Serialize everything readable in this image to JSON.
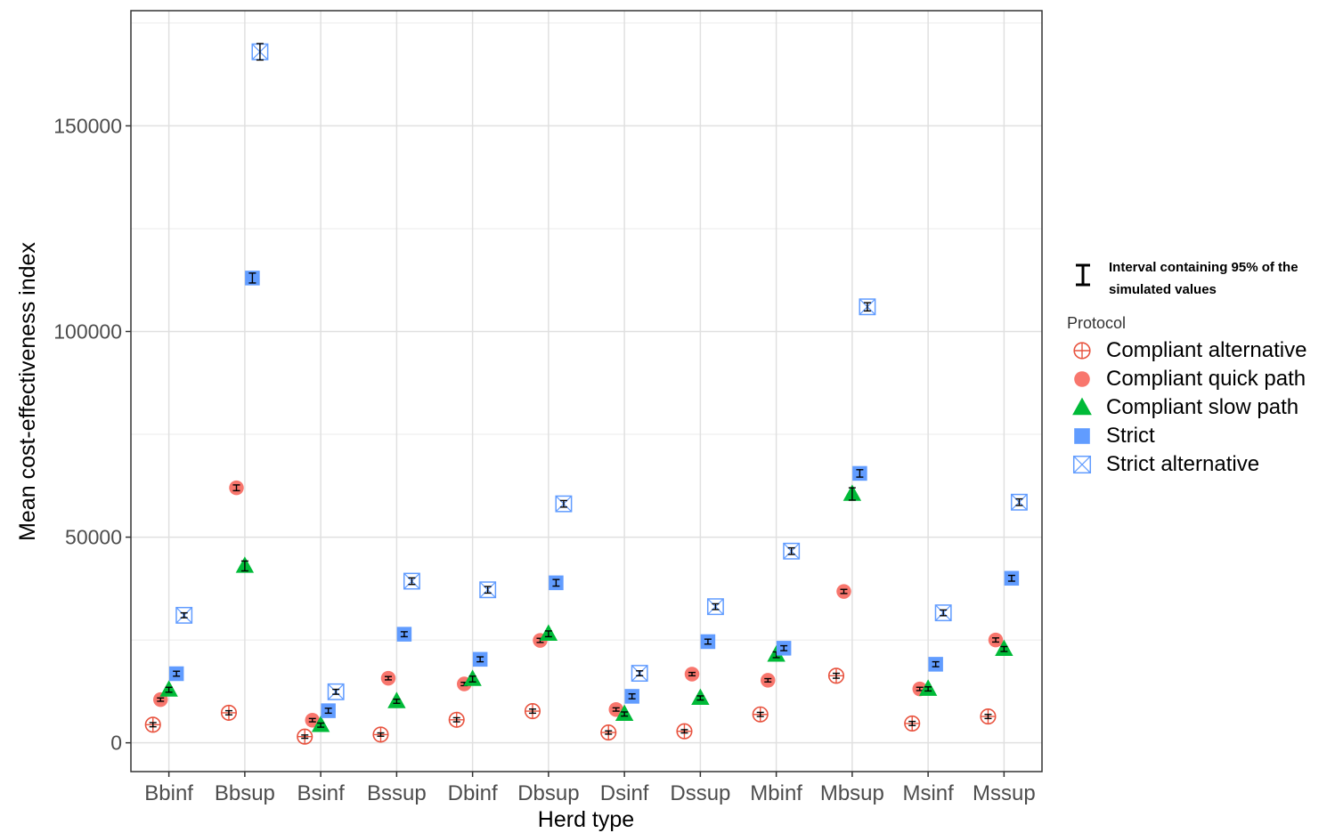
{
  "chart_data": {
    "type": "scatter",
    "xlabel": "Herd type",
    "ylabel": "Mean cost-effectiveness index",
    "categories": [
      "Bbinf",
      "Bbsup",
      "Bsinf",
      "Bssup",
      "Dbinf",
      "Dbsup",
      "Dsinf",
      "Dssup",
      "Mbinf",
      "Mbsup",
      "Msinf",
      "Mssup"
    ],
    "yticks": [
      0,
      50000,
      100000,
      150000
    ],
    "ytick_labels": [
      "0",
      "50000",
      "100000",
      "150000"
    ],
    "ylim": [
      -7000,
      178000
    ],
    "grid": true,
    "legend_position": "right",
    "legend_title": "Protocol",
    "ci_note": "Interval containing 95% of the simulated values",
    "series": [
      {
        "name": "Compliant alternative",
        "color": "#e8533f",
        "marker": "circle-cross",
        "values": [
          4400,
          7300,
          1500,
          2000,
          5600,
          7700,
          2500,
          2800,
          6900,
          16300,
          4700,
          6400
        ],
        "ci_low": [
          3900,
          6800,
          1100,
          1600,
          5100,
          7200,
          2100,
          2400,
          6400,
          15700,
          4200,
          5900
        ],
        "ci_high": [
          4900,
          7800,
          1900,
          2400,
          6100,
          8200,
          2900,
          3200,
          7400,
          16900,
          5200,
          6900
        ]
      },
      {
        "name": "Compliant quick path",
        "color": "#f8766d",
        "marker": "circle",
        "values": [
          10500,
          62000,
          5500,
          15700,
          14300,
          24900,
          8100,
          16700,
          15200,
          36800,
          13100,
          25000
        ],
        "ci_low": [
          10100,
          61300,
          5100,
          15300,
          13900,
          24400,
          7700,
          16300,
          14800,
          36300,
          12700,
          24500
        ],
        "ci_high": [
          10900,
          62700,
          5900,
          16100,
          14700,
          25400,
          8500,
          17100,
          15600,
          37300,
          13500,
          25500
        ]
      },
      {
        "name": "Compliant slow path",
        "color": "#00ba38",
        "marker": "triangle",
        "values": [
          12900,
          43000,
          4300,
          10100,
          15500,
          26500,
          7000,
          10900,
          21400,
          60500,
          13100,
          22800
        ],
        "ci_low": [
          12300,
          41800,
          3800,
          9600,
          14800,
          25800,
          6500,
          10400,
          20700,
          59000,
          12600,
          22200
        ],
        "ci_high": [
          13500,
          44200,
          4800,
          10600,
          16200,
          27200,
          7500,
          11400,
          22100,
          62000,
          13600,
          23400
        ]
      },
      {
        "name": "Strict",
        "color": "#619cff",
        "marker": "square",
        "values": [
          16800,
          113000,
          7800,
          26400,
          20300,
          38900,
          11300,
          24600,
          23000,
          65500,
          19100,
          40000
        ],
        "ci_low": [
          16200,
          111800,
          7200,
          25800,
          19700,
          38100,
          10700,
          24000,
          22400,
          64600,
          18500,
          39300
        ],
        "ci_high": [
          17400,
          114200,
          8400,
          27000,
          20900,
          39700,
          11900,
          25200,
          23600,
          66400,
          19700,
          40700
        ]
      },
      {
        "name": "Strict alternative",
        "color": "#619cff",
        "marker": "square-x",
        "values": [
          31000,
          168000,
          12400,
          39300,
          37200,
          58100,
          16900,
          33100,
          46600,
          106000,
          31600,
          58500
        ],
        "ci_low": [
          30400,
          166000,
          11800,
          38500,
          36400,
          57300,
          16300,
          32400,
          45800,
          105000,
          30900,
          57700
        ],
        "ci_high": [
          31600,
          170000,
          13000,
          40100,
          38000,
          58900,
          17500,
          33800,
          47400,
          107000,
          32300,
          59300
        ]
      }
    ]
  }
}
